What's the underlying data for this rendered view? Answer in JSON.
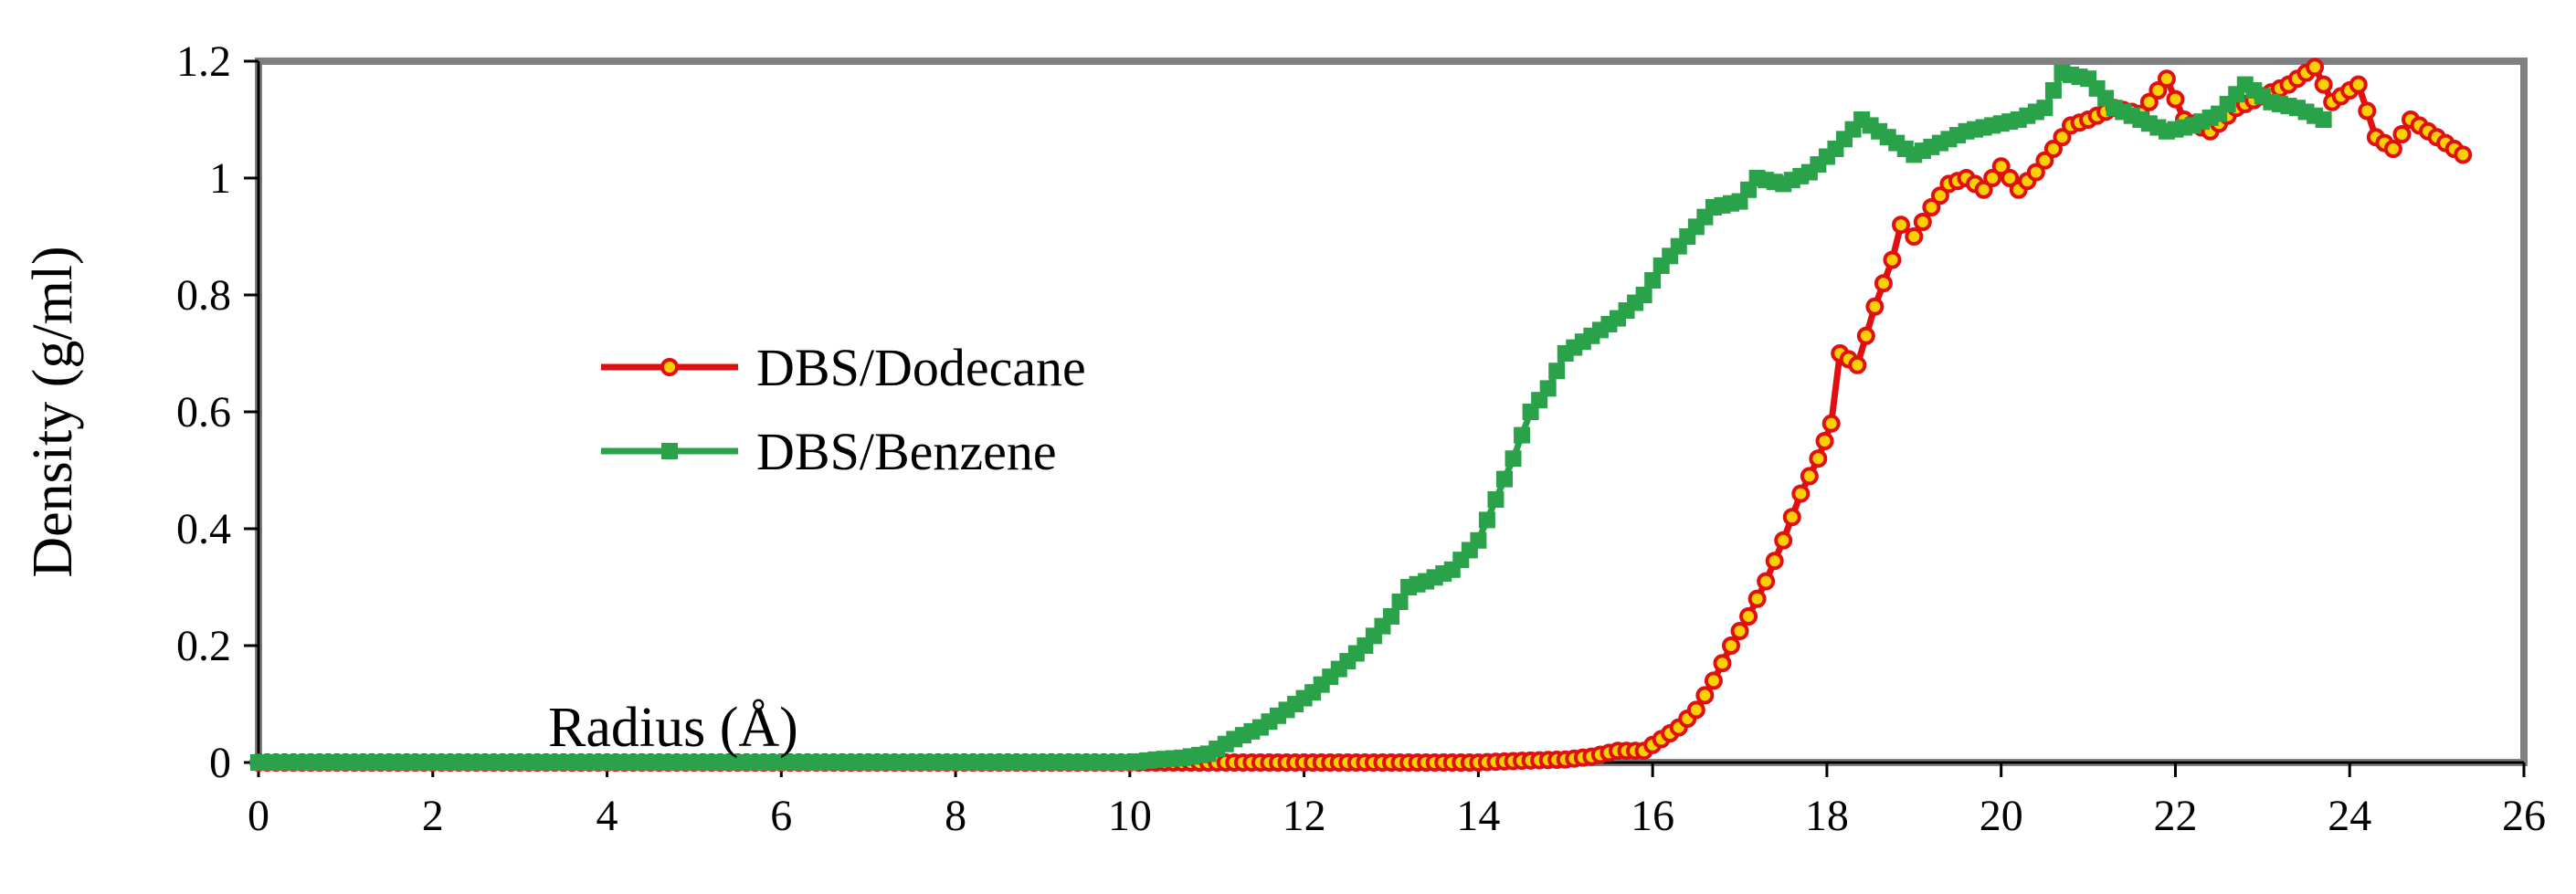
{
  "chart_data": {
    "type": "line",
    "title": "",
    "xlabel": "Radius (Å)",
    "ylabel": "Density (g/ml)",
    "xlim": [
      0,
      26
    ],
    "ylim": [
      0,
      1.2
    ],
    "xticks": [
      "0",
      "2",
      "4",
      "6",
      "8",
      "10",
      "12",
      "14",
      "16",
      "18",
      "20",
      "22",
      "24",
      "26"
    ],
    "yticks": [
      "0",
      "0.2",
      "0.4",
      "0.6",
      "0.8",
      "1",
      "1.2"
    ],
    "grid": false,
    "legend_position": "center-left",
    "series": [
      {
        "name": "DBS/Dodecane",
        "color": "#e01010",
        "marker": "circle",
        "marker_fill": "#ffd000",
        "points": [
          [
            0,
            0
          ],
          [
            10,
            0
          ],
          [
            10.5,
            0
          ],
          [
            11,
            0
          ],
          [
            11.5,
            0
          ],
          [
            12,
            0
          ],
          [
            12.5,
            0
          ],
          [
            13,
            0
          ],
          [
            13.5,
            0
          ],
          [
            14,
            0
          ],
          [
            14.5,
            0.003
          ],
          [
            15,
            0.005
          ],
          [
            15.3,
            0.01
          ],
          [
            15.6,
            0.02
          ],
          [
            15.9,
            0.02
          ],
          [
            16.1,
            0.04
          ],
          [
            16.3,
            0.06
          ],
          [
            16.5,
            0.09
          ],
          [
            16.7,
            0.14
          ],
          [
            16.9,
            0.2
          ],
          [
            17.1,
            0.25
          ],
          [
            17.3,
            0.31
          ],
          [
            17.5,
            0.38
          ],
          [
            17.7,
            0.46
          ],
          [
            17.9,
            0.52
          ],
          [
            18.05,
            0.58
          ],
          [
            18.15,
            0.7
          ],
          [
            18.35,
            0.68
          ],
          [
            18.55,
            0.78
          ],
          [
            18.75,
            0.86
          ],
          [
            18.85,
            0.92
          ],
          [
            19.0,
            0.9
          ],
          [
            19.2,
            0.95
          ],
          [
            19.4,
            0.99
          ],
          [
            19.6,
            1.0
          ],
          [
            19.8,
            0.98
          ],
          [
            20.0,
            1.02
          ],
          [
            20.2,
            0.98
          ],
          [
            20.4,
            1.01
          ],
          [
            20.6,
            1.05
          ],
          [
            20.8,
            1.09
          ],
          [
            21.0,
            1.1
          ],
          [
            21.3,
            1.12
          ],
          [
            21.6,
            1.11
          ],
          [
            21.9,
            1.17
          ],
          [
            22.1,
            1.1
          ],
          [
            22.4,
            1.08
          ],
          [
            22.7,
            1.12
          ],
          [
            23.0,
            1.14
          ],
          [
            23.3,
            1.16
          ],
          [
            23.6,
            1.19
          ],
          [
            23.8,
            1.13
          ],
          [
            24.1,
            1.16
          ],
          [
            24.3,
            1.07
          ],
          [
            24.5,
            1.05
          ],
          [
            24.7,
            1.1
          ],
          [
            25.0,
            1.07
          ],
          [
            25.3,
            1.04
          ]
        ]
      },
      {
        "name": "DBS/Benzene",
        "color": "#2aa24a",
        "marker": "square",
        "marker_fill": "#2aa24a",
        "points": [
          [
            0,
            0
          ],
          [
            9,
            0
          ],
          [
            9.5,
            0
          ],
          [
            10,
            0
          ],
          [
            10.3,
            0.005
          ],
          [
            10.6,
            0.008
          ],
          [
            10.9,
            0.015
          ],
          [
            11.2,
            0.04
          ],
          [
            11.5,
            0.06
          ],
          [
            11.8,
            0.09
          ],
          [
            12.1,
            0.12
          ],
          [
            12.4,
            0.16
          ],
          [
            12.7,
            0.2
          ],
          [
            13.0,
            0.25
          ],
          [
            13.2,
            0.3
          ],
          [
            13.4,
            0.31
          ],
          [
            13.7,
            0.33
          ],
          [
            14.0,
            0.38
          ],
          [
            14.2,
            0.45
          ],
          [
            14.4,
            0.52
          ],
          [
            14.6,
            0.6
          ],
          [
            14.8,
            0.64
          ],
          [
            15.0,
            0.7
          ],
          [
            15.3,
            0.73
          ],
          [
            15.6,
            0.76
          ],
          [
            15.9,
            0.8
          ],
          [
            16.1,
            0.85
          ],
          [
            16.4,
            0.9
          ],
          [
            16.7,
            0.95
          ],
          [
            17.0,
            0.96
          ],
          [
            17.2,
            1.0
          ],
          [
            17.5,
            0.99
          ],
          [
            17.8,
            1.01
          ],
          [
            18.1,
            1.05
          ],
          [
            18.4,
            1.1
          ],
          [
            18.7,
            1.07
          ],
          [
            19.0,
            1.04
          ],
          [
            19.3,
            1.06
          ],
          [
            19.6,
            1.08
          ],
          [
            19.9,
            1.09
          ],
          [
            20.2,
            1.1
          ],
          [
            20.5,
            1.12
          ],
          [
            20.7,
            1.18
          ],
          [
            21.0,
            1.17
          ],
          [
            21.3,
            1.12
          ],
          [
            21.6,
            1.1
          ],
          [
            21.9,
            1.08
          ],
          [
            22.2,
            1.09
          ],
          [
            22.5,
            1.11
          ],
          [
            22.8,
            1.16
          ],
          [
            23.1,
            1.13
          ],
          [
            23.4,
            1.12
          ],
          [
            23.7,
            1.1
          ]
        ]
      }
    ]
  }
}
